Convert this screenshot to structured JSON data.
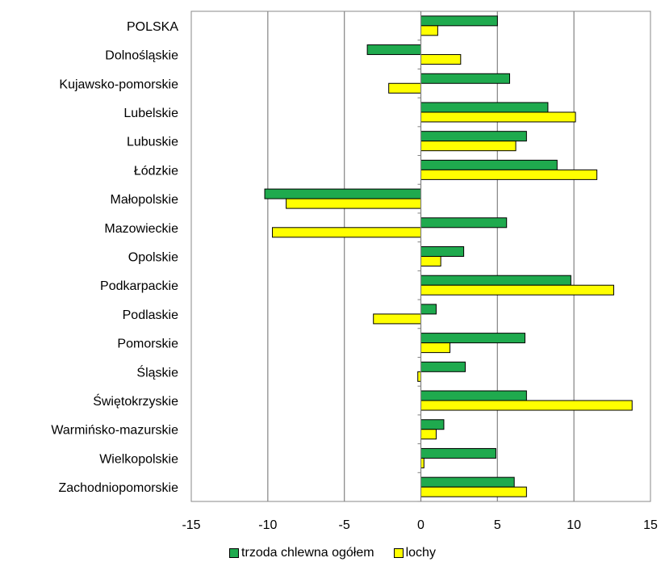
{
  "chart_data": {
    "type": "bar",
    "orientation": "horizontal",
    "categories": [
      "POLSKA",
      "Dolnośląskie",
      "Kujawsko-pomorskie",
      "Lubelskie",
      "Lubuskie",
      "Łódzkie",
      "Małopolskie",
      "Mazowieckie",
      "Opolskie",
      "Podkarpackie",
      "Podlaskie",
      "Pomorskie",
      "Śląskie",
      "Świętokrzyskie",
      "Warmińsko-mazurskie",
      "Wielkopolskie",
      "Zachodniopomorskie"
    ],
    "series": [
      {
        "name": "trzoda chlewna ogółem",
        "color": "#1faa4e",
        "values": [
          5.0,
          -3.5,
          5.8,
          8.3,
          6.9,
          8.9,
          -10.2,
          5.6,
          2.8,
          9.8,
          1.0,
          6.8,
          2.9,
          6.9,
          1.5,
          4.9,
          6.1
        ]
      },
      {
        "name": "lochy",
        "color": "#ffff00",
        "values": [
          1.1,
          2.6,
          -2.1,
          10.1,
          6.2,
          11.5,
          -8.8,
          -9.7,
          1.3,
          12.6,
          -3.1,
          1.9,
          -0.2,
          13.8,
          1.0,
          0.2,
          6.9
        ]
      }
    ],
    "xlim": [
      -15,
      15
    ],
    "xticks": [
      "-15",
      "-10",
      "-5",
      "0",
      "5",
      "10",
      "15"
    ],
    "grid": true,
    "legend_position": "bottom"
  }
}
